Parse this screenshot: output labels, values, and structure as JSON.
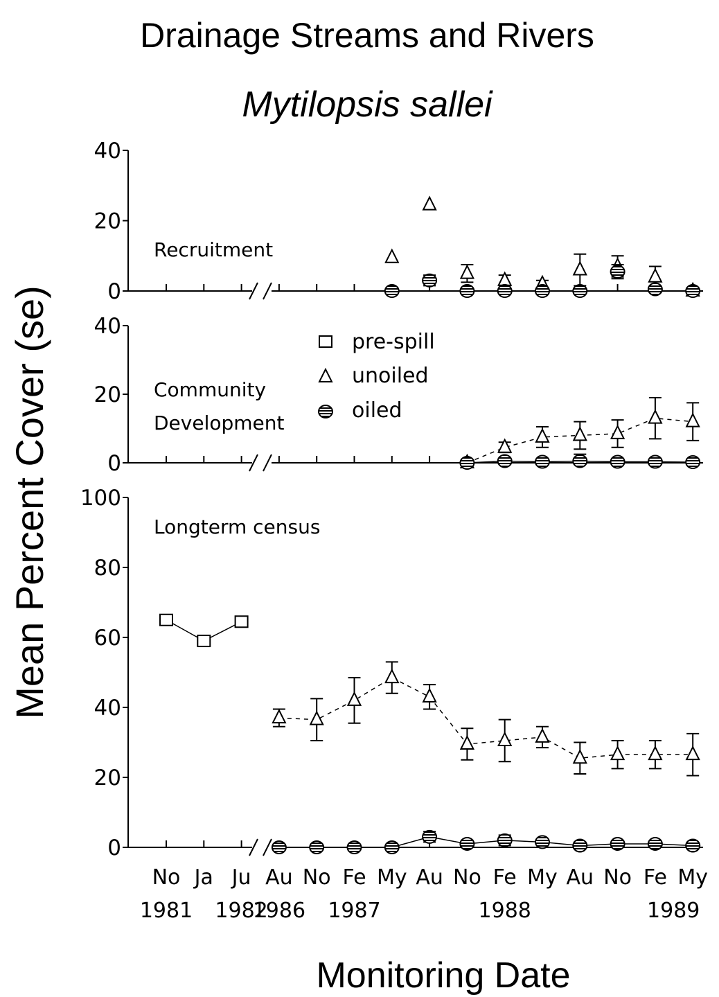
{
  "title": "Drainage Streams and Rivers",
  "subtitle": "Mytilopsis sallei",
  "ylabel": "Mean Percent Cover (se)",
  "xlabel": "Monitoring Date",
  "chart_data": {
    "type": "scatter",
    "grid": false,
    "legend": {
      "placement": "middle panel, center",
      "entries": [
        {
          "label": "pre-spill",
          "marker": "open-square"
        },
        {
          "label": "unoiled",
          "marker": "open-triangle"
        },
        {
          "label": "oiled",
          "marker": "hatched-circle"
        }
      ]
    },
    "x": {
      "categories": [
        "No",
        "Ja",
        "Ju",
        "Au",
        "No",
        "Fe",
        "My",
        "Au",
        "No",
        "Fe",
        "My",
        "Au",
        "No",
        "Fe",
        "My"
      ],
      "year_labels": [
        {
          "label": "1981",
          "at": 0
        },
        {
          "label": "1982",
          "at": 2
        },
        {
          "label": "1986",
          "at": 3
        },
        {
          "label": "1987",
          "at": 5
        },
        {
          "label": "1988",
          "at": 9
        },
        {
          "label": "1989",
          "at": 14
        }
      ],
      "axis_break_after": 2
    },
    "panels": [
      {
        "name": "Recruitment",
        "ylim": [
          0,
          40
        ],
        "yticks": [
          0,
          20,
          40
        ],
        "series": [
          {
            "name": "unoiled",
            "marker": "triangle",
            "connected": false,
            "points": [
              {
                "x": 6,
                "y": 9.5
              },
              {
                "x": 7,
                "y": 24.5
              },
              {
                "x": 8,
                "y": 5,
                "se": 2.5
              },
              {
                "x": 9,
                "y": 3,
                "se": 1.5
              },
              {
                "x": 10,
                "y": 2,
                "se": 1
              },
              {
                "x": 11,
                "y": 6,
                "se": 4.5
              },
              {
                "x": 12,
                "y": 7,
                "se": 3
              },
              {
                "x": 13,
                "y": 4,
                "se": 3
              },
              {
                "x": 14,
                "y": 0
              }
            ]
          },
          {
            "name": "oiled",
            "marker": "circle",
            "connected": false,
            "points": [
              {
                "x": 6,
                "y": 0
              },
              {
                "x": 7,
                "y": 3,
                "se": 1.5
              },
              {
                "x": 8,
                "y": 0
              },
              {
                "x": 9,
                "y": 0
              },
              {
                "x": 10,
                "y": 0
              },
              {
                "x": 11,
                "y": 0
              },
              {
                "x": 12,
                "y": 5.5,
                "se": 2
              },
              {
                "x": 13,
                "y": 0.5
              },
              {
                "x": 14,
                "y": 0
              }
            ]
          }
        ]
      },
      {
        "name": "Community Development",
        "ylim": [
          0,
          40
        ],
        "yticks": [
          0,
          20,
          40
        ],
        "series": [
          {
            "name": "unoiled",
            "marker": "triangle",
            "connected": true,
            "points": [
              {
                "x": 8,
                "y": 0
              },
              {
                "x": 9,
                "y": 4.5,
                "se": 1.5
              },
              {
                "x": 10,
                "y": 7.5,
                "se": 3
              },
              {
                "x": 11,
                "y": 8,
                "se": 4
              },
              {
                "x": 12,
                "y": 8.5,
                "se": 4
              },
              {
                "x": 13,
                "y": 13,
                "se": 6
              },
              {
                "x": 14,
                "y": 12,
                "se": 5.5
              }
            ]
          },
          {
            "name": "oiled",
            "marker": "circle",
            "connected": true,
            "points": [
              {
                "x": 8,
                "y": 0
              },
              {
                "x": 9,
                "y": 0.5
              },
              {
                "x": 10,
                "y": 0.3
              },
              {
                "x": 11,
                "y": 0.5,
                "se": 2
              },
              {
                "x": 12,
                "y": 0.3
              },
              {
                "x": 13,
                "y": 0.3
              },
              {
                "x": 14,
                "y": 0.2
              }
            ]
          }
        ]
      },
      {
        "name": "Longterm census",
        "ylim": [
          0,
          100
        ],
        "yticks": [
          0,
          20,
          40,
          60,
          80,
          100
        ],
        "series": [
          {
            "name": "pre-spill",
            "marker": "square",
            "connected": true,
            "points": [
              {
                "x": 0,
                "y": 65
              },
              {
                "x": 1,
                "y": 59
              },
              {
                "x": 2,
                "y": 64.5
              }
            ]
          },
          {
            "name": "unoiled",
            "marker": "triangle",
            "connected": true,
            "points": [
              {
                "x": 3,
                "y": 37,
                "se": 2.5
              },
              {
                "x": 4,
                "y": 36.5,
                "se": 6
              },
              {
                "x": 5,
                "y": 42,
                "se": 6.5
              },
              {
                "x": 6,
                "y": 48.5,
                "se": 4.5
              },
              {
                "x": 7,
                "y": 43,
                "se": 3.5
              },
              {
                "x": 8,
                "y": 29.5,
                "se": 4.5
              },
              {
                "x": 9,
                "y": 30.5,
                "se": 6
              },
              {
                "x": 10,
                "y": 31.5,
                "se": 3
              },
              {
                "x": 11,
                "y": 25.5,
                "se": 4.5
              },
              {
                "x": 12,
                "y": 26.5,
                "se": 4
              },
              {
                "x": 13,
                "y": 26.5,
                "se": 4
              },
              {
                "x": 14,
                "y": 26.5,
                "se": 6
              }
            ]
          },
          {
            "name": "oiled",
            "marker": "circle",
            "connected": true,
            "points": [
              {
                "x": 3,
                "y": 0
              },
              {
                "x": 4,
                "y": 0
              },
              {
                "x": 5,
                "y": 0
              },
              {
                "x": 6,
                "y": 0
              },
              {
                "x": 7,
                "y": 3,
                "se": 1.5
              },
              {
                "x": 8,
                "y": 1,
                "se": 1
              },
              {
                "x": 9,
                "y": 2,
                "se": 1.5
              },
              {
                "x": 10,
                "y": 1.5,
                "se": 1
              },
              {
                "x": 11,
                "y": 0.5,
                "se": 1
              },
              {
                "x": 12,
                "y": 1,
                "se": 0.5
              },
              {
                "x": 13,
                "y": 1,
                "se": 0.5
              },
              {
                "x": 14,
                "y": 0.5,
                "se": 0.5
              }
            ]
          }
        ]
      }
    ]
  }
}
